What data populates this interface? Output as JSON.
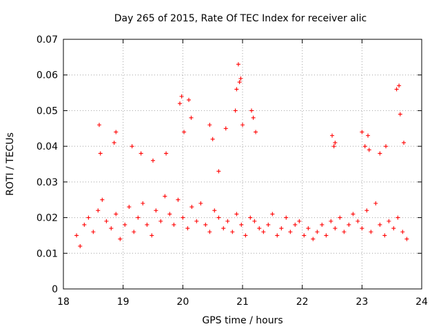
{
  "chart_data": {
    "type": "scatter",
    "title": "Day 265 of 2015, Rate Of TEC Index for receiver alic",
    "xlabel": "GPS time / hours",
    "ylabel": "ROTI / TECUs",
    "xlim": [
      18,
      24
    ],
    "ylim": [
      0,
      0.07
    ],
    "xticks": [
      18,
      19,
      20,
      21,
      22,
      23,
      24
    ],
    "yticks": [
      0,
      0.01,
      0.02,
      0.03,
      0.04,
      0.05,
      0.06,
      0.07
    ],
    "xtick_labels": [
      "18",
      "19",
      "20",
      "21",
      "22",
      "23",
      "24"
    ],
    "ytick_labels": [
      "0",
      "0.01",
      "0.02",
      "0.03",
      "0.04",
      "0.05",
      "0.06",
      "0.07"
    ],
    "grid": true,
    "marker": "+",
    "color": "#ff0000",
    "series": [
      {
        "name": "alic",
        "x": [
          18.22,
          18.28,
          18.35,
          18.42,
          18.5,
          18.58,
          18.65,
          18.72,
          18.8,
          18.88,
          18.95,
          19.03,
          19.1,
          19.18,
          19.25,
          19.33,
          19.4,
          19.48,
          19.55,
          19.63,
          19.7,
          19.78,
          19.85,
          19.92,
          20.0,
          20.08,
          20.15,
          20.23,
          20.3,
          20.38,
          20.45,
          20.53,
          20.6,
          20.68,
          20.75,
          20.83,
          20.9,
          20.98,
          21.05,
          21.13,
          21.2,
          21.28,
          21.35,
          21.43,
          21.5,
          21.58,
          21.65,
          21.73,
          21.8,
          21.88,
          21.95,
          22.03,
          22.1,
          22.18,
          22.25,
          22.33,
          22.4,
          22.48,
          22.55,
          22.63,
          22.7,
          22.78,
          22.85,
          22.93,
          23.0,
          23.08,
          23.15,
          23.23,
          23.3,
          23.38,
          23.45,
          23.53,
          23.6,
          23.68,
          23.75,
          18.6,
          18.62,
          18.85,
          18.88,
          19.15,
          19.3,
          19.5,
          19.72,
          19.95,
          19.98,
          20.02,
          20.1,
          20.14,
          20.45,
          20.5,
          20.6,
          20.72,
          20.88,
          20.9,
          20.93,
          20.95,
          20.97,
          21.0,
          21.15,
          21.18,
          21.22,
          22.5,
          22.53,
          22.55,
          23.0,
          23.05,
          23.1,
          23.12,
          23.3,
          23.4,
          23.58,
          23.62,
          23.64,
          23.7
        ],
        "y": [
          0.015,
          0.012,
          0.018,
          0.02,
          0.016,
          0.022,
          0.025,
          0.019,
          0.017,
          0.021,
          0.014,
          0.018,
          0.023,
          0.016,
          0.02,
          0.024,
          0.018,
          0.015,
          0.022,
          0.019,
          0.026,
          0.021,
          0.018,
          0.025,
          0.02,
          0.017,
          0.023,
          0.019,
          0.024,
          0.018,
          0.016,
          0.022,
          0.02,
          0.017,
          0.019,
          0.016,
          0.021,
          0.018,
          0.015,
          0.02,
          0.019,
          0.017,
          0.016,
          0.018,
          0.021,
          0.015,
          0.017,
          0.02,
          0.016,
          0.018,
          0.019,
          0.015,
          0.017,
          0.014,
          0.016,
          0.018,
          0.015,
          0.019,
          0.017,
          0.02,
          0.016,
          0.018,
          0.021,
          0.019,
          0.017,
          0.022,
          0.016,
          0.024,
          0.018,
          0.015,
          0.019,
          0.017,
          0.02,
          0.016,
          0.014,
          0.046,
          0.038,
          0.041,
          0.044,
          0.04,
          0.038,
          0.036,
          0.038,
          0.052,
          0.054,
          0.044,
          0.053,
          0.048,
          0.046,
          0.042,
          0.033,
          0.045,
          0.05,
          0.056,
          0.063,
          0.058,
          0.059,
          0.046,
          0.05,
          0.048,
          0.044,
          0.043,
          0.04,
          0.041,
          0.044,
          0.04,
          0.043,
          0.039,
          0.038,
          0.04,
          0.056,
          0.057,
          0.049,
          0.041
        ]
      }
    ]
  }
}
